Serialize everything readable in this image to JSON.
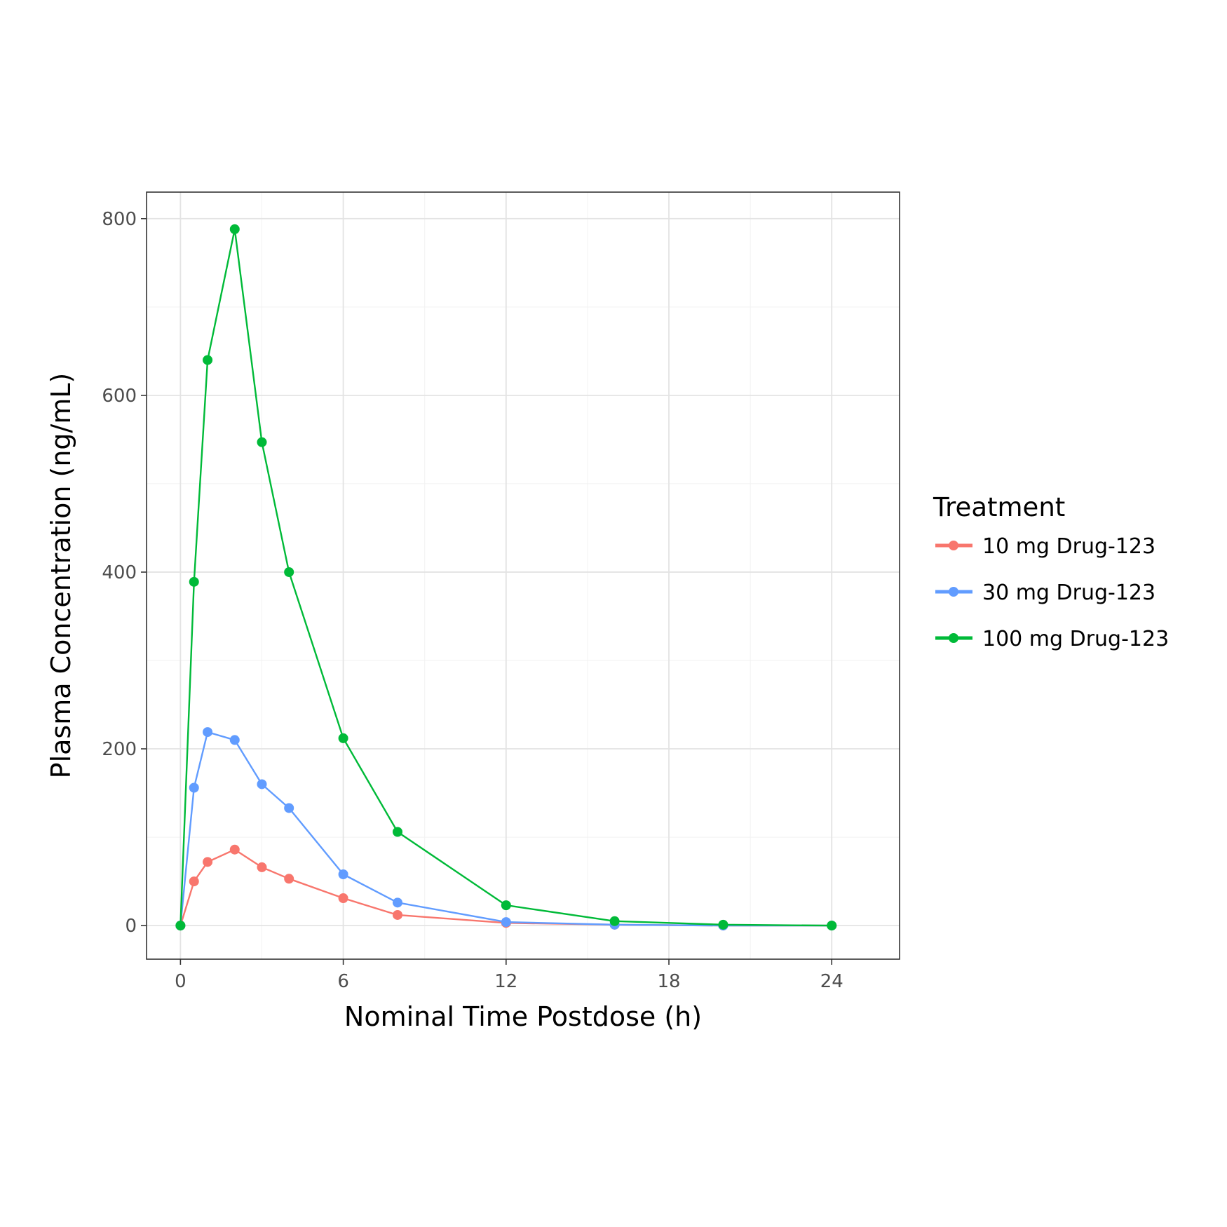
{
  "chart_data": {
    "type": "line",
    "title": "",
    "xlabel": "Nominal Time Postdose (h)",
    "ylabel": "Plasma Concentration (ng/mL)",
    "xlim": [
      -1.25,
      26.5
    ],
    "ylim": [
      -38,
      830
    ],
    "x_ticks": [
      0,
      6,
      12,
      18,
      24
    ],
    "x_tick_labels": [
      "0",
      "6",
      "12",
      "18",
      "24"
    ],
    "y_ticks": [
      0,
      200,
      400,
      600,
      800
    ],
    "y_tick_labels": [
      "0",
      "200",
      "400",
      "600",
      "800"
    ],
    "grid": true,
    "legend_title": "Treatment",
    "legend_position": "right",
    "series": [
      {
        "name": "10 mg Drug-123",
        "color": "#F8766D",
        "x": [
          0,
          0.5,
          1,
          2,
          3,
          4,
          6,
          8,
          12,
          16,
          20,
          24
        ],
        "y": [
          0,
          50,
          72,
          86,
          66,
          53,
          31,
          12,
          3,
          1,
          0,
          0
        ]
      },
      {
        "name": "30 mg Drug-123",
        "color": "#619CFF",
        "x": [
          0,
          0.5,
          1,
          2,
          3,
          4,
          6,
          8,
          12,
          16,
          20,
          24
        ],
        "y": [
          0,
          156,
          219,
          210,
          160,
          133,
          58,
          26,
          4,
          1,
          0,
          0
        ]
      },
      {
        "name": "100 mg Drug-123",
        "color": "#00BA38",
        "x": [
          0,
          0.5,
          1,
          2,
          3,
          4,
          6,
          8,
          12,
          16,
          20,
          24
        ],
        "y": [
          0,
          389,
          640,
          788,
          547,
          400,
          212,
          106,
          23,
          5,
          1,
          0
        ]
      }
    ]
  }
}
